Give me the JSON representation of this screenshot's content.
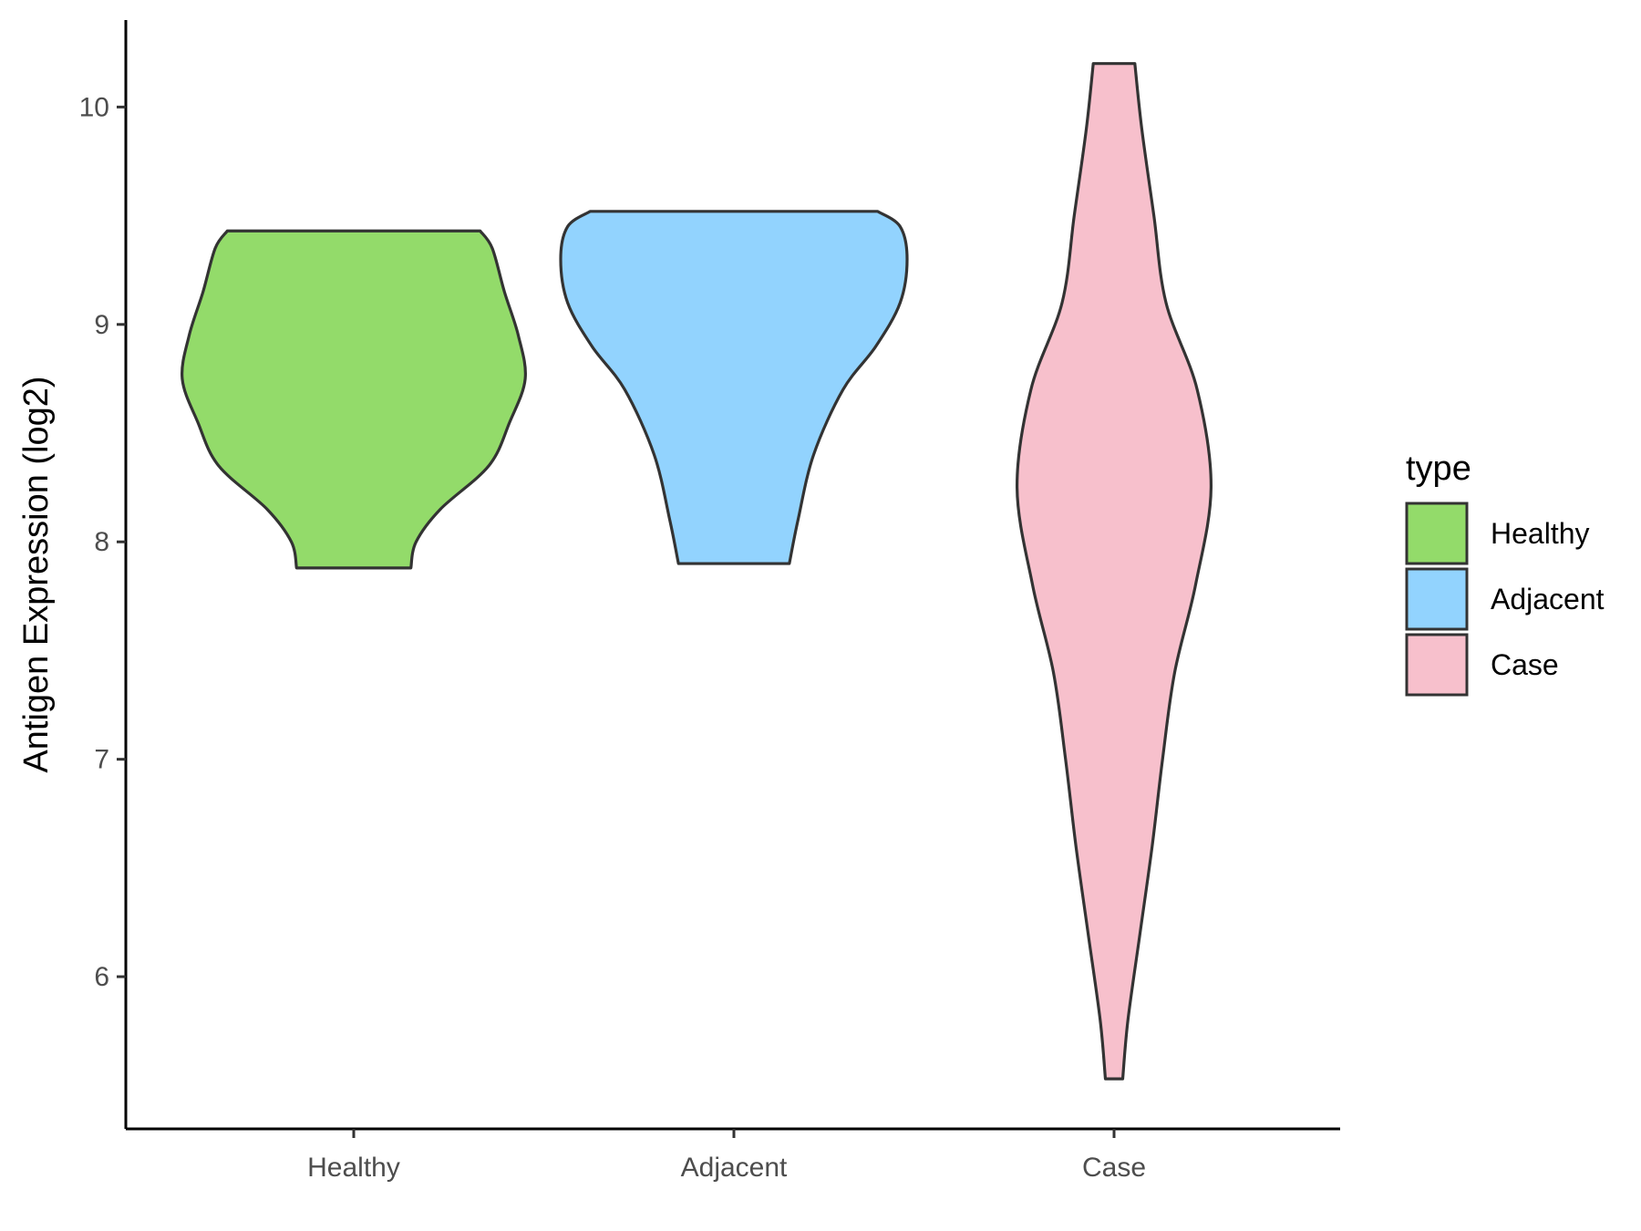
{
  "chart_data": {
    "type": "violin",
    "title": "",
    "xlabel": "",
    "ylabel": "Antigen Expression (log2)",
    "ylim": [
      5.3,
      10.4
    ],
    "y_ticks": [
      6,
      7,
      8,
      9,
      10
    ],
    "categories": [
      "Healthy",
      "Adjacent",
      "Case"
    ],
    "legend": {
      "title": "type",
      "placement": "right",
      "entries": [
        "Healthy",
        "Adjacent",
        "Case"
      ]
    },
    "grid": false,
    "series": [
      {
        "name": "Healthy",
        "color": "#93DB6A",
        "min": 7.88,
        "max": 9.43,
        "density_profile": [
          [
            7.88,
            0.33
          ],
          [
            8.0,
            0.36
          ],
          [
            8.15,
            0.5
          ],
          [
            8.35,
            0.78
          ],
          [
            8.55,
            0.9
          ],
          [
            8.75,
            0.99
          ],
          [
            8.95,
            0.95
          ],
          [
            9.15,
            0.87
          ],
          [
            9.35,
            0.8
          ],
          [
            9.43,
            0.73
          ]
        ]
      },
      {
        "name": "Adjacent",
        "color": "#92D3FE",
        "min": 7.9,
        "max": 9.52,
        "density_profile": [
          [
            7.9,
            0.32
          ],
          [
            8.1,
            0.37
          ],
          [
            8.4,
            0.46
          ],
          [
            8.7,
            0.63
          ],
          [
            8.9,
            0.82
          ],
          [
            9.1,
            0.96
          ],
          [
            9.3,
            1.0
          ],
          [
            9.45,
            0.96
          ],
          [
            9.52,
            0.83
          ]
        ]
      },
      {
        "name": "Case",
        "color": "#F7C0CC",
        "min": 5.53,
        "max": 10.2,
        "density_profile": [
          [
            5.53,
            0.05
          ],
          [
            5.8,
            0.08
          ],
          [
            6.2,
            0.15
          ],
          [
            6.6,
            0.22
          ],
          [
            7.0,
            0.28
          ],
          [
            7.4,
            0.35
          ],
          [
            7.8,
            0.47
          ],
          [
            8.25,
            0.56
          ],
          [
            8.7,
            0.48
          ],
          [
            9.1,
            0.3
          ],
          [
            9.5,
            0.23
          ],
          [
            9.9,
            0.16
          ],
          [
            10.2,
            0.12
          ]
        ]
      }
    ]
  }
}
